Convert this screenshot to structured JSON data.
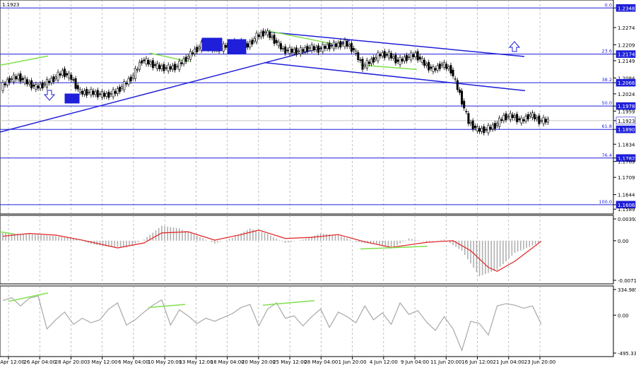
{
  "header": {
    "last_price": "1.1923"
  },
  "chart_data": [
    {
      "type": "line",
      "panel": "price",
      "ylim": [
        1.1571,
        1.2378
      ],
      "price_ticks": [
        "1.2348",
        "1.2274",
        "1.2209",
        "1.2174",
        "1.2149",
        "1.2084",
        "1.2066",
        "1.2024",
        "1.1978",
        "1.1959",
        "1.1923",
        "1.1890",
        "1.1834",
        "1.1782",
        "1.1769",
        "1.1709",
        "1.1644",
        "1.1606",
        "1.1589"
      ],
      "highlighted_ticks": [
        "1.2348",
        "1.2174",
        "1.2066",
        "1.1978",
        "1.1923",
        "1.1890",
        "1.1782",
        "1.1606"
      ],
      "fib_levels": [
        {
          "label": "0.0",
          "value": 1.2348
        },
        {
          "label": "23.6",
          "value": 1.2174
        },
        {
          "label": "38.2",
          "value": 1.2066
        },
        {
          "label": "50.0",
          "value": 1.1978
        },
        {
          "label": "61.8",
          "value": 1.189
        },
        {
          "label": "76.4",
          "value": 1.1782
        },
        {
          "label": "100.0",
          "value": 1.1606
        }
      ],
      "x_labels": [
        "22 Apr 12:00",
        "26 Apr 04:00",
        "28 Apr 20:00",
        "3 May 12:00",
        "6 May 04:00",
        "10 May 20:00",
        "13 May 12:00",
        "18 May 04:00",
        "20 May 20:00",
        "25 May 12:00",
        "28 May 04:00",
        "1 Jun 20:00",
        "4 Jun 12:00",
        "9 Jun 04:00",
        "11 Jun 20:00",
        "16 Jun 12:00",
        "21 Jun 04:00",
        "23 Jun 20:00"
      ],
      "close_series": [
        [
          0,
          1.2048
        ],
        [
          1,
          1.2079
        ],
        [
          2,
          1.2088
        ],
        [
          3,
          1.2067
        ],
        [
          4,
          1.2048
        ],
        [
          5,
          1.2061
        ],
        [
          6,
          1.2082
        ],
        [
          7,
          1.2106
        ],
        [
          8,
          1.2084
        ],
        [
          9,
          1.2028
        ],
        [
          10,
          1.2031
        ],
        [
          11,
          1.2024
        ],
        [
          12,
          1.2019
        ],
        [
          13,
          1.2031
        ],
        [
          14,
          1.2058
        ],
        [
          15,
          1.2093
        ],
        [
          16,
          1.2152
        ],
        [
          17,
          1.2138
        ],
        [
          18,
          1.2124
        ],
        [
          19,
          1.2121
        ],
        [
          20,
          1.2128
        ],
        [
          21,
          1.2158
        ],
        [
          22,
          1.2188
        ],
        [
          23,
          1.2213
        ],
        [
          24,
          1.2196
        ],
        [
          25,
          1.2197
        ],
        [
          26,
          1.2213
        ],
        [
          27,
          1.2213
        ],
        [
          28,
          1.2206
        ],
        [
          29,
          1.2241
        ],
        [
          30,
          1.2258
        ],
        [
          31,
          1.2226
        ],
        [
          32,
          1.219
        ],
        [
          33,
          1.2186
        ],
        [
          34,
          1.2186
        ],
        [
          35,
          1.2199
        ],
        [
          36,
          1.2192
        ],
        [
          37,
          1.2204
        ],
        [
          38,
          1.2208
        ],
        [
          39,
          1.2216
        ],
        [
          40,
          1.2189
        ],
        [
          41,
          1.2128
        ],
        [
          42,
          1.2149
        ],
        [
          43,
          1.2173
        ],
        [
          44,
          1.2171
        ],
        [
          45,
          1.2146
        ],
        [
          46,
          1.2161
        ],
        [
          47,
          1.2172
        ],
        [
          48,
          1.2137
        ],
        [
          49,
          1.2114
        ],
        [
          50,
          1.2136
        ],
        [
          51,
          1.2114
        ],
        [
          52,
          1.2023
        ],
        [
          53,
          1.1918
        ],
        [
          54,
          1.1888
        ],
        [
          55,
          1.1889
        ],
        [
          56,
          1.1905
        ],
        [
          57,
          1.1937
        ],
        [
          58,
          1.194
        ],
        [
          59,
          1.1921
        ],
        [
          60,
          1.1947
        ],
        [
          61,
          1.1923
        ]
      ],
      "candle_range": {
        "x_start": 0,
        "x_end": 61
      }
    },
    {
      "type": "bar",
      "panel": "macd",
      "ylim": [
        -0.00713,
        0.00392
      ],
      "ticks": [
        "0.00392",
        "0.00",
        "-0.00713"
      ],
      "histogram_points": [
        [
          0,
          0.0014
        ],
        [
          3,
          0.0012
        ],
        [
          6,
          0.0008
        ],
        [
          8,
          0.0004
        ],
        [
          10,
          -0.0006
        ],
        [
          12,
          -0.0011
        ],
        [
          14,
          -0.0012
        ],
        [
          16,
          0.0002
        ],
        [
          18,
          0.0027
        ],
        [
          20,
          0.0022
        ],
        [
          22,
          0.0009
        ],
        [
          24,
          -0.0005
        ],
        [
          26,
          0.0005
        ],
        [
          28,
          0.0022
        ],
        [
          30,
          0.0012
        ],
        [
          32,
          -0.0004
        ],
        [
          34,
          0.0002
        ],
        [
          36,
          0.0013
        ],
        [
          38,
          0.001
        ],
        [
          40,
          -0.0002
        ],
        [
          42,
          -0.0006
        ],
        [
          44,
          -0.0014
        ],
        [
          46,
          0.0004
        ],
        [
          48,
          -0.0002
        ],
        [
          50,
          0.0002
        ],
        [
          52,
          -0.0018
        ],
        [
          54,
          -0.0064
        ],
        [
          56,
          -0.0052
        ],
        [
          58,
          -0.0022
        ],
        [
          61,
          -0.0002
        ]
      ],
      "signal_points": [
        [
          0,
          0.0008
        ],
        [
          3,
          0.0013
        ],
        [
          6,
          0.001
        ],
        [
          9,
          0.0001
        ],
        [
          13,
          -0.0013
        ],
        [
          16,
          -0.0004
        ],
        [
          18,
          0.0014
        ],
        [
          21,
          0.0016
        ],
        [
          24,
          0.0001
        ],
        [
          27,
          0.0011
        ],
        [
          29,
          0.0019
        ],
        [
          32,
          0.0004
        ],
        [
          35,
          0.0006
        ],
        [
          38,
          0.0011
        ],
        [
          41,
          -0.0002
        ],
        [
          44,
          -0.0012
        ],
        [
          48,
          -0.0003
        ],
        [
          51,
          0.0
        ],
        [
          53,
          -0.0018
        ],
        [
          55,
          -0.0048
        ],
        [
          56,
          -0.0055
        ],
        [
          58,
          -0.0037
        ],
        [
          61,
          -0.0001
        ]
      ]
    },
    {
      "type": "line",
      "panel": "cci",
      "ylim": [
        -495.331,
        334.9851
      ],
      "ticks": [
        "334.9851",
        "0.00",
        "-495.331"
      ],
      "points": [
        [
          0,
          190
        ],
        [
          1,
          230
        ],
        [
          2,
          120
        ],
        [
          3,
          220
        ],
        [
          4,
          250
        ],
        [
          5,
          -180
        ],
        [
          6,
          -60
        ],
        [
          7,
          40
        ],
        [
          8,
          -120
        ],
        [
          9,
          -40
        ],
        [
          10,
          -100
        ],
        [
          11,
          -60
        ],
        [
          12,
          80
        ],
        [
          13,
          160
        ],
        [
          14,
          -130
        ],
        [
          15,
          -60
        ],
        [
          16,
          40
        ],
        [
          17,
          130
        ],
        [
          18,
          200
        ],
        [
          19,
          -130
        ],
        [
          20,
          70
        ],
        [
          21,
          -10
        ],
        [
          22,
          -110
        ],
        [
          23,
          -40
        ],
        [
          24,
          -80
        ],
        [
          25,
          -30
        ],
        [
          26,
          20
        ],
        [
          27,
          100
        ],
        [
          28,
          140
        ],
        [
          29,
          -140
        ],
        [
          30,
          80
        ],
        [
          31,
          160
        ],
        [
          32,
          -40
        ],
        [
          33,
          -10
        ],
        [
          34,
          -140
        ],
        [
          35,
          -20
        ],
        [
          36,
          80
        ],
        [
          37,
          -160
        ],
        [
          38,
          40
        ],
        [
          39,
          -20
        ],
        [
          40,
          -100
        ],
        [
          41,
          120
        ],
        [
          42,
          -60
        ],
        [
          43,
          30
        ],
        [
          44,
          -120
        ],
        [
          45,
          160
        ],
        [
          46,
          10
        ],
        [
          47,
          60
        ],
        [
          48,
          -90
        ],
        [
          49,
          -200
        ],
        [
          50,
          -20
        ],
        [
          51,
          -180
        ],
        [
          52,
          -460
        ],
        [
          53,
          -80
        ],
        [
          54,
          -110
        ],
        [
          55,
          -260
        ],
        [
          56,
          120
        ],
        [
          57,
          150
        ],
        [
          58,
          130
        ],
        [
          59,
          90
        ],
        [
          60,
          120
        ],
        [
          61,
          -120
        ]
      ]
    }
  ]
}
